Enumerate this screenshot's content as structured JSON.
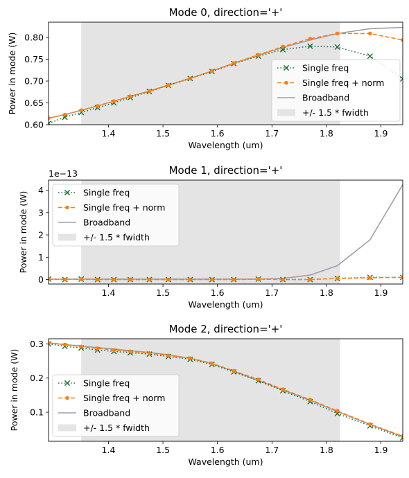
{
  "figure": {
    "x_range": [
      1.29,
      1.94
    ],
    "x_ticks": [
      1.4,
      1.5,
      1.6,
      1.7,
      1.8,
      1.9
    ],
    "x_tick_labels": [
      "1.4",
      "1.5",
      "1.6",
      "1.7",
      "1.8",
      "1.9"
    ],
    "shade_range": [
      1.35,
      1.825
    ]
  },
  "colors": {
    "single_freq": "#1a6e32",
    "single_freq_norm": "#ff7f0e",
    "broadband": "#a09cae",
    "band": "#e4e4e4"
  },
  "chart_data": [
    {
      "type": "line",
      "title": "Mode 0, direction='+'",
      "xlabel": "Wavelength (um)",
      "ylabel": "Power in mode (W)",
      "ylim": [
        0.6,
        0.835
      ],
      "yticks": [
        0.6,
        0.65,
        0.7,
        0.75,
        0.8
      ],
      "ytick_labels": [
        "0.60",
        "0.65",
        "0.70",
        "0.75",
        "0.80"
      ],
      "offset_text": "",
      "legend_position": "lower right",
      "legend": [
        "Single freq",
        "Single freq + norm",
        "Broadband",
        "+/- 1.5 * fwidth"
      ],
      "series": [
        {
          "name": "Single freq",
          "x": [
            1.29,
            1.32,
            1.35,
            1.38,
            1.41,
            1.44,
            1.475,
            1.51,
            1.55,
            1.59,
            1.63,
            1.675,
            1.72,
            1.77,
            1.82,
            1.88,
            1.94
          ],
          "y": [
            0.603,
            0.617,
            0.628,
            0.639,
            0.65,
            0.662,
            0.676,
            0.69,
            0.706,
            0.722,
            0.74,
            0.757,
            0.772,
            0.78,
            0.778,
            0.757,
            0.705
          ]
        },
        {
          "name": "Single freq + norm",
          "x": [
            1.29,
            1.32,
            1.35,
            1.38,
            1.41,
            1.44,
            1.475,
            1.51,
            1.55,
            1.59,
            1.63,
            1.675,
            1.72,
            1.77,
            1.82,
            1.88,
            1.94
          ],
          "y": [
            0.615,
            0.623,
            0.633,
            0.643,
            0.654,
            0.665,
            0.677,
            0.691,
            0.706,
            0.723,
            0.741,
            0.76,
            0.779,
            0.797,
            0.809,
            0.809,
            0.794
          ]
        },
        {
          "name": "Broadband",
          "x": [
            1.29,
            1.32,
            1.35,
            1.38,
            1.41,
            1.44,
            1.475,
            1.51,
            1.55,
            1.59,
            1.63,
            1.675,
            1.72,
            1.77,
            1.82,
            1.88,
            1.94
          ],
          "y": [
            0.615,
            0.623,
            0.633,
            0.643,
            0.654,
            0.665,
            0.677,
            0.691,
            0.706,
            0.723,
            0.741,
            0.759,
            0.777,
            0.794,
            0.809,
            0.82,
            0.823
          ]
        }
      ],
      "band": [
        1.35,
        1.825
      ]
    },
    {
      "type": "line",
      "title": "Mode 1, direction='+'",
      "xlabel": "Wavelength (um)",
      "ylabel": "Power in mode (W)",
      "ylim": [
        -0.2,
        4.45
      ],
      "yticks": [
        0,
        1,
        2,
        3,
        4
      ],
      "ytick_labels": [
        "0",
        "1",
        "2",
        "3",
        "4"
      ],
      "offset_text": "1e−13",
      "legend_position": "upper left",
      "legend": [
        "Single freq",
        "Single freq + norm",
        "Broadband",
        "+/- 1.5 * fwidth"
      ],
      "series": [
        {
          "name": "Single freq",
          "x": [
            1.29,
            1.32,
            1.35,
            1.38,
            1.41,
            1.44,
            1.475,
            1.51,
            1.55,
            1.59,
            1.63,
            1.675,
            1.72,
            1.77,
            1.82,
            1.88,
            1.94
          ],
          "y": [
            0.02,
            0.0,
            0.02,
            0.0,
            0.0,
            0.0,
            0.0,
            0.0,
            0.0,
            0.0,
            0.0,
            0.02,
            0.0,
            0.0,
            0.05,
            0.1,
            0.1
          ]
        },
        {
          "name": "Single freq + norm",
          "x": [
            1.29,
            1.32,
            1.35,
            1.38,
            1.41,
            1.44,
            1.475,
            1.51,
            1.55,
            1.59,
            1.63,
            1.675,
            1.72,
            1.77,
            1.82,
            1.88,
            1.94
          ],
          "y": [
            0.02,
            0.0,
            0.02,
            0.0,
            0.0,
            0.0,
            0.0,
            0.0,
            0.0,
            0.0,
            0.0,
            0.02,
            0.0,
            0.0,
            0.05,
            0.08,
            0.1
          ]
        },
        {
          "name": "Broadband",
          "x": [
            1.29,
            1.32,
            1.35,
            1.38,
            1.41,
            1.44,
            1.475,
            1.51,
            1.55,
            1.59,
            1.63,
            1.675,
            1.72,
            1.77,
            1.82,
            1.88,
            1.94
          ],
          "y": [
            0.02,
            0.02,
            0.02,
            0.02,
            0.02,
            0.02,
            0.02,
            0.02,
            0.02,
            0.02,
            0.02,
            0.02,
            0.05,
            0.2,
            0.62,
            1.78,
            4.25
          ]
        }
      ],
      "band": [
        1.35,
        1.825
      ]
    },
    {
      "type": "line",
      "title": "Mode 2, direction='+'",
      "xlabel": "Wavelength (um)",
      "ylabel": "Power in mode (W)",
      "ylim": [
        0.015,
        0.315
      ],
      "yticks": [
        0.1,
        0.2,
        0.3
      ],
      "ytick_labels": [
        "0.1",
        "0.2",
        "0.3"
      ],
      "offset_text": "",
      "legend_position": "lower left",
      "legend": [
        "Single freq",
        "Single freq + norm",
        "Broadband",
        "+/- 1.5 * fwidth"
      ],
      "series": [
        {
          "name": "Single freq",
          "x": [
            1.29,
            1.32,
            1.35,
            1.38,
            1.41,
            1.44,
            1.475,
            1.51,
            1.55,
            1.59,
            1.63,
            1.675,
            1.72,
            1.77,
            1.82,
            1.88,
            1.94
          ],
          "y": [
            0.3,
            0.293,
            0.288,
            0.282,
            0.278,
            0.274,
            0.27,
            0.263,
            0.255,
            0.24,
            0.218,
            0.192,
            0.163,
            0.131,
            0.096,
            0.06,
            0.025
          ]
        },
        {
          "name": "Single freq + norm",
          "x": [
            1.29,
            1.32,
            1.35,
            1.38,
            1.41,
            1.44,
            1.475,
            1.51,
            1.55,
            1.59,
            1.63,
            1.675,
            1.72,
            1.77,
            1.82,
            1.88,
            1.94
          ],
          "y": [
            0.303,
            0.298,
            0.292,
            0.287,
            0.282,
            0.278,
            0.273,
            0.266,
            0.258,
            0.243,
            0.221,
            0.196,
            0.167,
            0.137,
            0.104,
            0.065,
            0.03
          ]
        },
        {
          "name": "Broadband",
          "x": [
            1.29,
            1.32,
            1.35,
            1.38,
            1.41,
            1.44,
            1.475,
            1.51,
            1.55,
            1.59,
            1.63,
            1.675,
            1.72,
            1.77,
            1.82,
            1.88,
            1.94
          ],
          "y": [
            0.303,
            0.298,
            0.294,
            0.289,
            0.285,
            0.28,
            0.275,
            0.268,
            0.258,
            0.242,
            0.22,
            0.193,
            0.165,
            0.135,
            0.102,
            0.064,
            0.028
          ]
        }
      ],
      "band": [
        1.35,
        1.825
      ]
    }
  ]
}
